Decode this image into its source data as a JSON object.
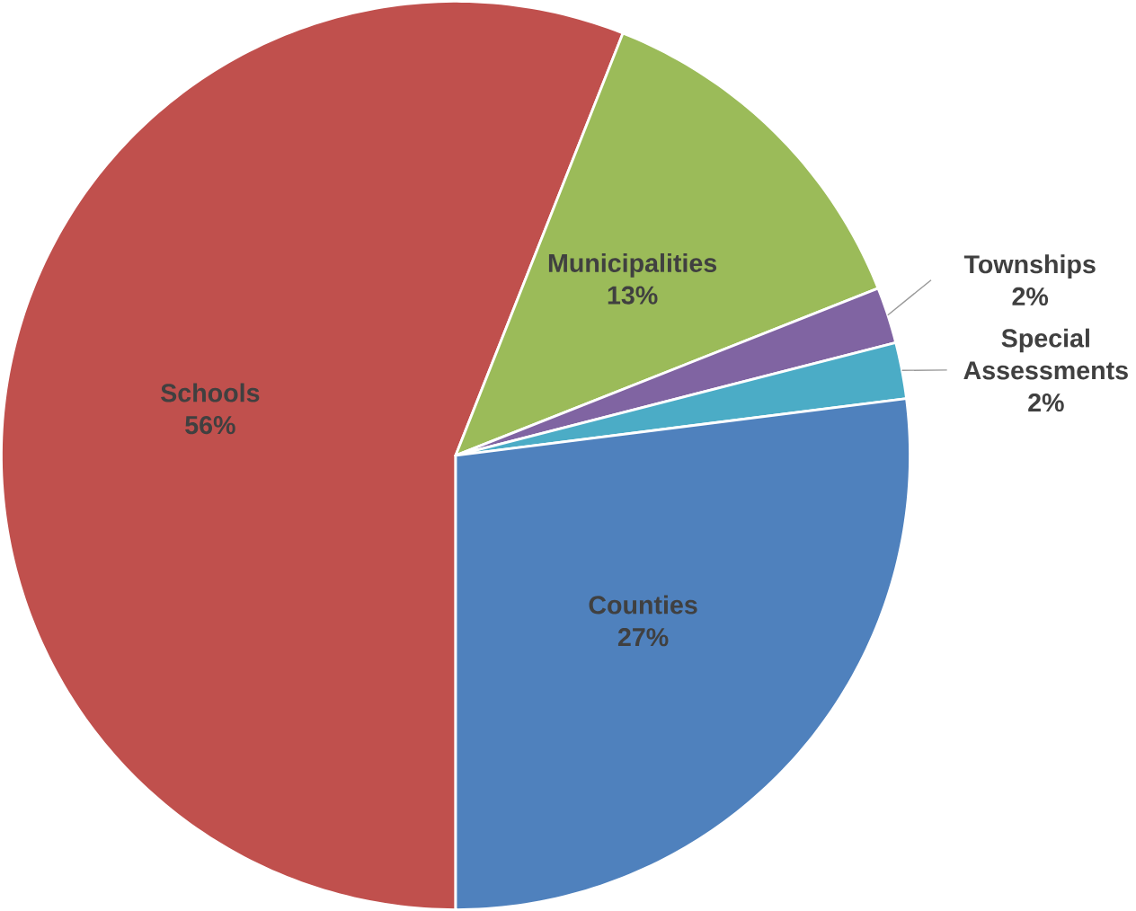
{
  "chart_data": {
    "type": "pie",
    "categories": [
      "Schools",
      "Municipalities",
      "Townships",
      "Special Assessments",
      "Counties"
    ],
    "values": [
      56,
      13,
      2,
      2,
      27
    ],
    "colors": [
      "#c0504d",
      "#9bbb59",
      "#8064a2",
      "#4bacc6",
      "#4f81bd"
    ],
    "value_labels": [
      "56%",
      "13%",
      "2%",
      "2%",
      "27%"
    ]
  }
}
